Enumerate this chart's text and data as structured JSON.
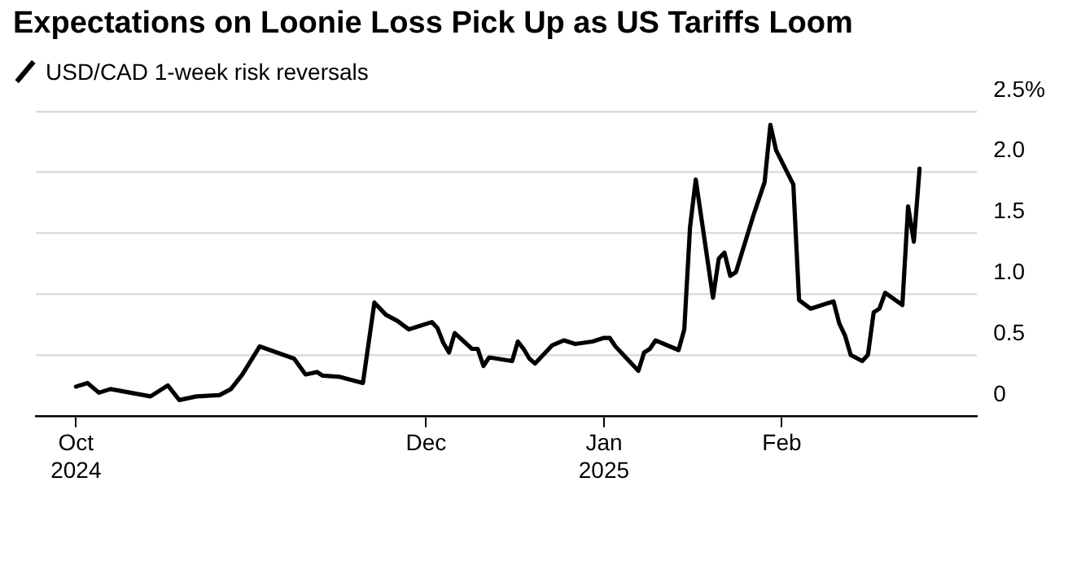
{
  "chart_data": {
    "type": "line",
    "title": "Expectations on Loonie Loss Pick Up as US Tariffs Loom",
    "series": [
      {
        "name": "USD/CAD 1-week risk reversals",
        "color": "#000000",
        "x": [
          "2024-10-01",
          "2024-10-03",
          "2024-10-05",
          "2024-10-07",
          "2024-10-14",
          "2024-10-17",
          "2024-10-19",
          "2024-10-22",
          "2024-10-26",
          "2024-10-28",
          "2024-10-30",
          "2024-11-02",
          "2024-11-08",
          "2024-11-10",
          "2024-11-12",
          "2024-11-13",
          "2024-11-16",
          "2024-11-20",
          "2024-11-22",
          "2024-11-24",
          "2024-11-26",
          "2024-11-28",
          "2024-12-02",
          "2024-12-03",
          "2024-12-04",
          "2024-12-05",
          "2024-12-06",
          "2024-12-09",
          "2024-12-10",
          "2024-12-11",
          "2024-12-12",
          "2024-12-16",
          "2024-12-17",
          "2024-12-18",
          "2024-12-19",
          "2024-12-20",
          "2024-12-23",
          "2024-12-25",
          "2024-12-27",
          "2024-12-30",
          "2025-01-01",
          "2025-01-02",
          "2025-01-03",
          "2025-01-07",
          "2025-01-08",
          "2025-01-09",
          "2025-01-10",
          "2025-01-14",
          "2025-01-15",
          "2025-01-16",
          "2025-01-17",
          "2025-01-20",
          "2025-01-21",
          "2025-01-22",
          "2025-01-23",
          "2025-01-24",
          "2025-01-27",
          "2025-01-29",
          "2025-01-30",
          "2025-01-31",
          "2025-02-03",
          "2025-02-04",
          "2025-02-06",
          "2025-02-10",
          "2025-02-11",
          "2025-02-12",
          "2025-02-13",
          "2025-02-15",
          "2025-02-16",
          "2025-02-17",
          "2025-02-18",
          "2025-02-19",
          "2025-02-22",
          "2025-02-23",
          "2025-02-24",
          "2025-02-25"
        ],
        "values": [
          0.24,
          0.27,
          0.19,
          0.22,
          0.16,
          0.25,
          0.13,
          0.16,
          0.17,
          0.22,
          0.34,
          0.57,
          0.47,
          0.34,
          0.36,
          0.33,
          0.32,
          0.27,
          0.93,
          0.83,
          0.78,
          0.71,
          0.77,
          0.72,
          0.6,
          0.52,
          0.68,
          0.55,
          0.55,
          0.41,
          0.48,
          0.45,
          0.61,
          0.55,
          0.47,
          0.43,
          0.58,
          0.62,
          0.59,
          0.61,
          0.64,
          0.64,
          0.57,
          0.37,
          0.52,
          0.55,
          0.62,
          0.54,
          0.71,
          1.55,
          1.94,
          0.97,
          1.29,
          1.34,
          1.15,
          1.18,
          1.64,
          1.92,
          2.39,
          2.18,
          1.9,
          0.95,
          0.88,
          0.94,
          0.76,
          0.66,
          0.5,
          0.45,
          0.5,
          0.85,
          0.88,
          1.01,
          0.91,
          1.72,
          1.43,
          2.03
        ]
      }
    ],
    "xlim": [
      "2024-09-24",
      "2025-03-07"
    ],
    "xticks": [
      {
        "value": "2024-10",
        "label": "Oct 2024"
      },
      {
        "value": "2024-12",
        "label": "Dec"
      },
      {
        "value": "2025-01",
        "label": "Jan 2025"
      },
      {
        "value": "2025-02",
        "label": "Feb"
      }
    ],
    "ylim": [
      0,
      2.5
    ],
    "yticks": [
      0,
      0.5,
      {
        "value": 1,
        "label": "1.0"
      },
      1.5,
      {
        "value": 2,
        "label": "2.0"
      },
      {
        "value": 2.5,
        "label": "2.5%"
      }
    ],
    "grid": "y",
    "legend": "top left",
    "marker": "none",
    "line_style": "solid"
  }
}
